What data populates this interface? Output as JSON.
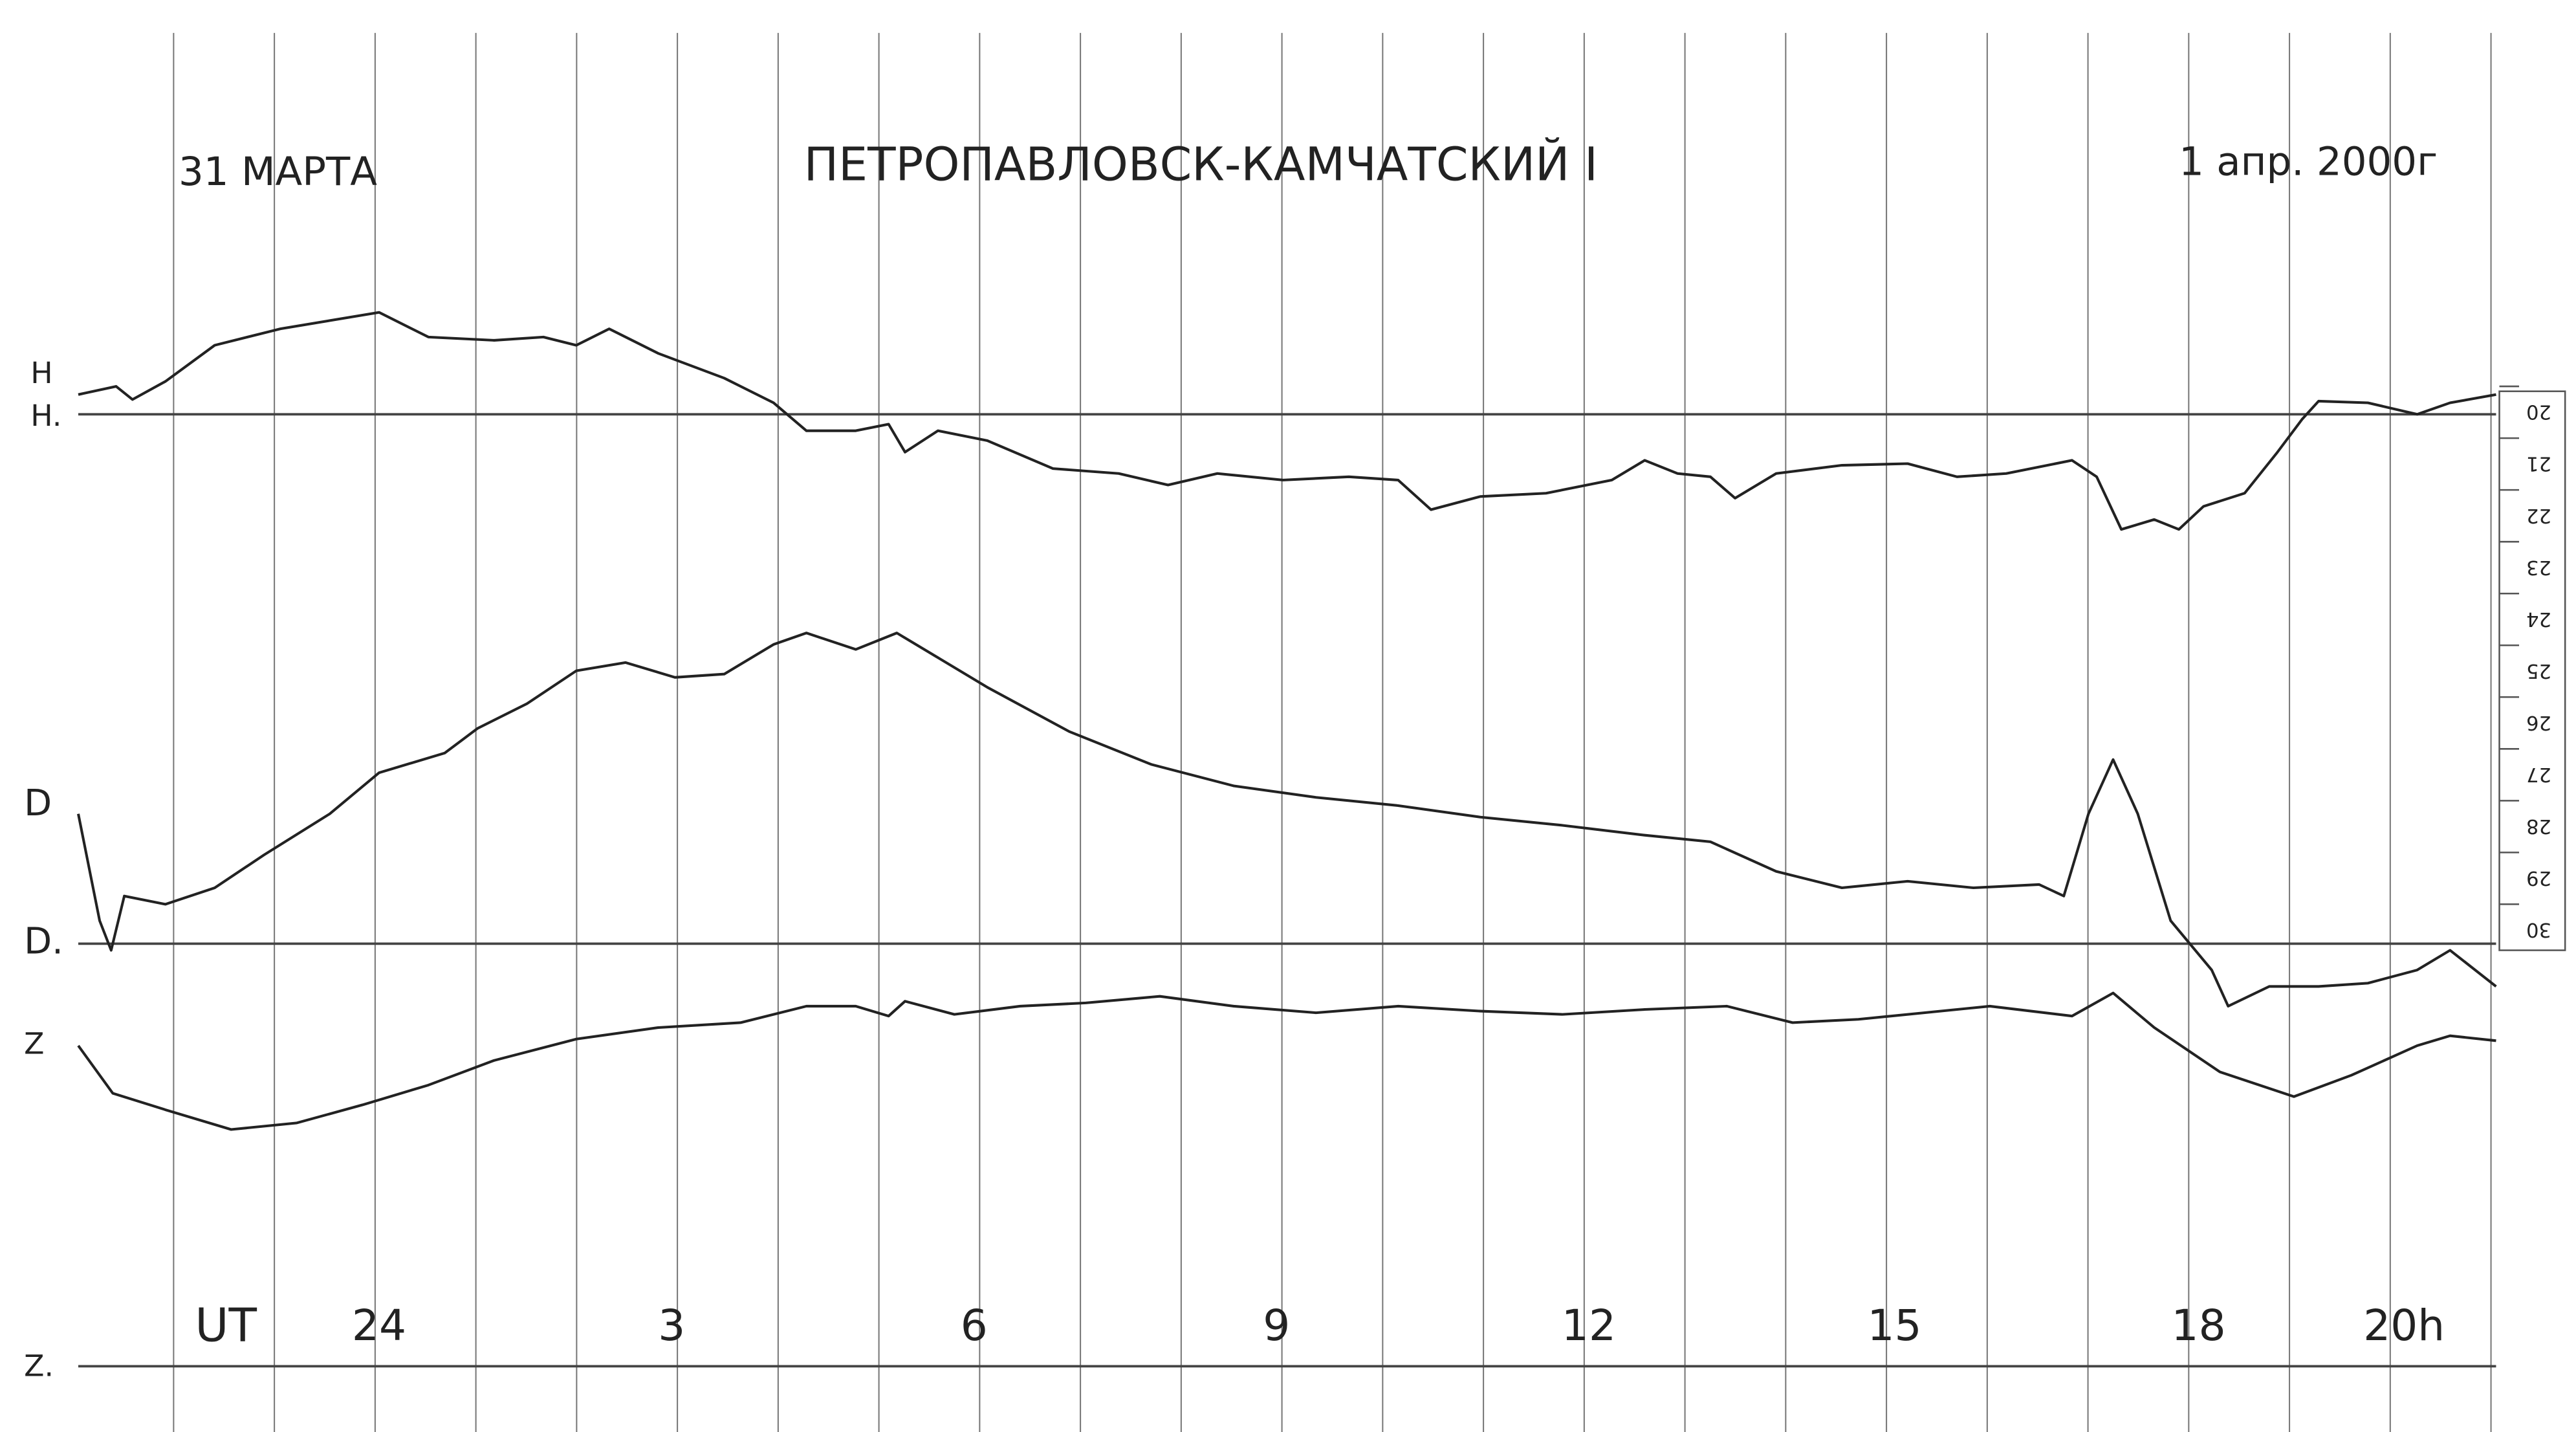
{
  "header": {
    "date_left": "31 МАРТА",
    "station": "ПЕТРОПАВЛОВСК-КАМЧАТСКИЙ I",
    "date_right": "1 апр. 2000г"
  },
  "channels": [
    {
      "label": "H",
      "baseline_label": "H."
    },
    {
      "label": "D",
      "baseline_label": "D."
    },
    {
      "label": "Z",
      "baseline_label": "Z."
    }
  ],
  "time_axis": {
    "prefix": "UT",
    "labels": [
      "24",
      "3",
      "6",
      "9",
      "12",
      "15",
      "18",
      "20h"
    ]
  },
  "scale": [
    "20",
    "21",
    "22",
    "23",
    "24",
    "25",
    "26",
    "27",
    "28",
    "29",
    "30"
  ]
}
